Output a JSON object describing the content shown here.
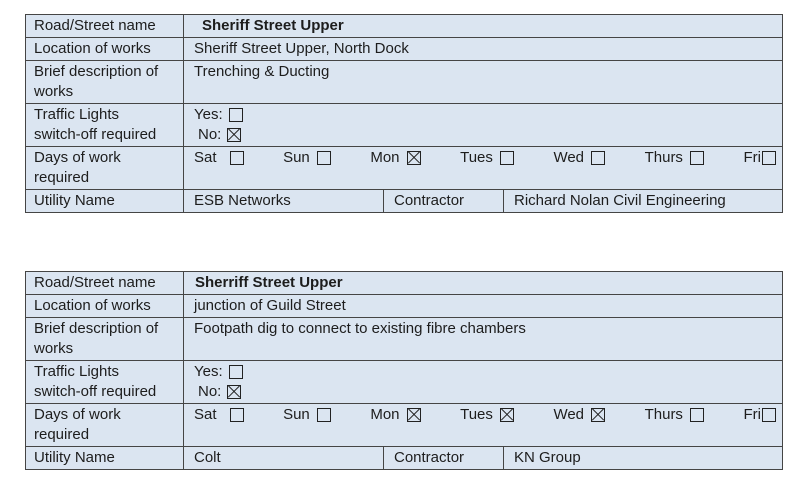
{
  "colors": {
    "cell_background": "#dbe5f1",
    "border": "#454545",
    "text": "#1d1d1d",
    "page_background": "#ffffff"
  },
  "t1": {
    "road": {
      "label": "Road/Street name",
      "value": "Sheriff Street Upper"
    },
    "location": {
      "label": "Location of works",
      "value": "Sheriff Street Upper, North Dock"
    },
    "description": {
      "label1": "Brief description of",
      "label2": "works",
      "value": "Trenching & Ducting"
    },
    "traffic": {
      "label1": "Traffic Lights",
      "label2": "switch-off required",
      "yes_label": "Yes:",
      "yes_checked": false,
      "no_label": "No:",
      "no_checked": true
    },
    "days": {
      "label1": "Days of work",
      "label2": "required",
      "items": [
        {
          "label": "Sat",
          "checked": false
        },
        {
          "label": "Sun",
          "checked": false
        },
        {
          "label": "Mon",
          "checked": true
        },
        {
          "label": "Tues",
          "checked": false
        },
        {
          "label": "Wed",
          "checked": false
        },
        {
          "label": "Thurs",
          "checked": false
        },
        {
          "label": "Fri",
          "checked": false
        }
      ]
    },
    "utility": {
      "label": "Utility Name",
      "value": "ESB Networks",
      "contractor_label": "Contractor",
      "contractor_value": "Richard Nolan Civil Engineering"
    }
  },
  "t2": {
    "road": {
      "label": "Road/Street name",
      "value": "Sherriff Street Upper"
    },
    "location": {
      "label": "Location of works",
      "value": "junction of Guild Street"
    },
    "description": {
      "label1": "Brief description of",
      "label2": "works",
      "value": "Footpath dig to connect to existing fibre chambers"
    },
    "traffic": {
      "label1": "Traffic Lights",
      "label2": "switch-off required",
      "yes_label": "Yes:",
      "yes_checked": false,
      "no_label": "No:",
      "no_checked": true
    },
    "days": {
      "label1": "Days of work",
      "label2": "required",
      "items": [
        {
          "label": "Sat",
          "checked": false
        },
        {
          "label": "Sun",
          "checked": false
        },
        {
          "label": "Mon",
          "checked": true
        },
        {
          "label": "Tues",
          "checked": true
        },
        {
          "label": "Wed",
          "checked": true
        },
        {
          "label": "Thurs",
          "checked": false
        },
        {
          "label": "Fri",
          "checked": false
        }
      ]
    },
    "utility": {
      "label": "Utility Name",
      "value": "Colt",
      "contractor_label": "Contractor",
      "contractor_value": "KN Group"
    }
  }
}
